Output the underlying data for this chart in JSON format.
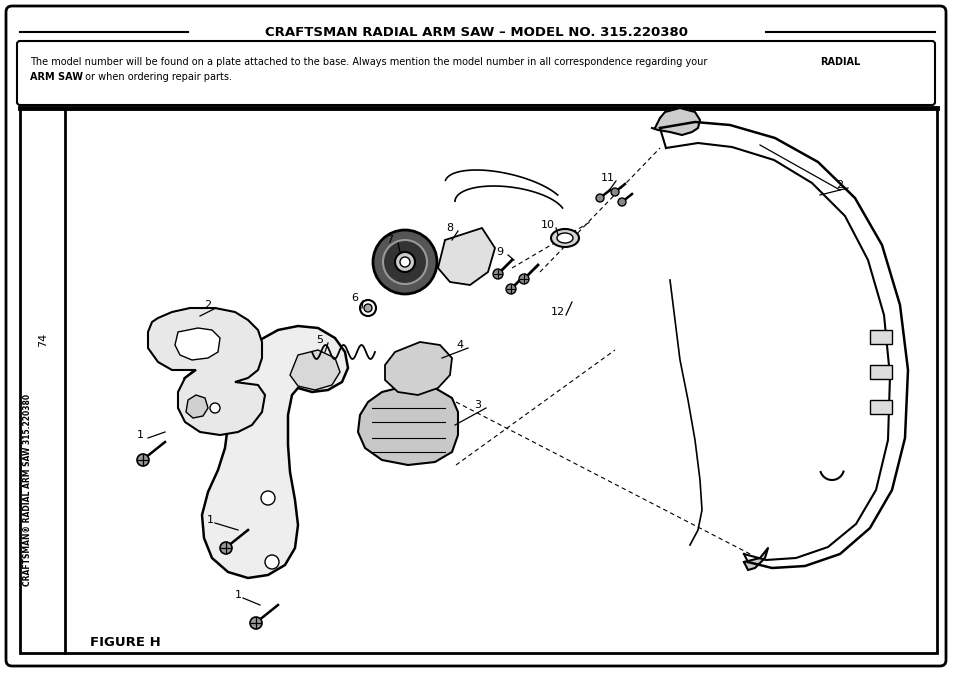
{
  "title": "CRAFTSMAN RADIAL ARM SAW – MODEL NO. 315.220380",
  "figure_label": "FIGURE H",
  "side_text": "CRAFTSMAN® RADIAL SAW 315.220380",
  "page_number": "74",
  "bg_color": "#ffffff",
  "fig_width": 9.54,
  "fig_height": 6.77,
  "notice_line1": "The model number will be found on a plate attached to the base. Always mention the model number in all correspondence regarding your ",
  "notice_bold1": "RADIAL",
  "notice_line2_bold": "ARM SAW",
  "notice_line2_rest": " or when ordering repair parts."
}
